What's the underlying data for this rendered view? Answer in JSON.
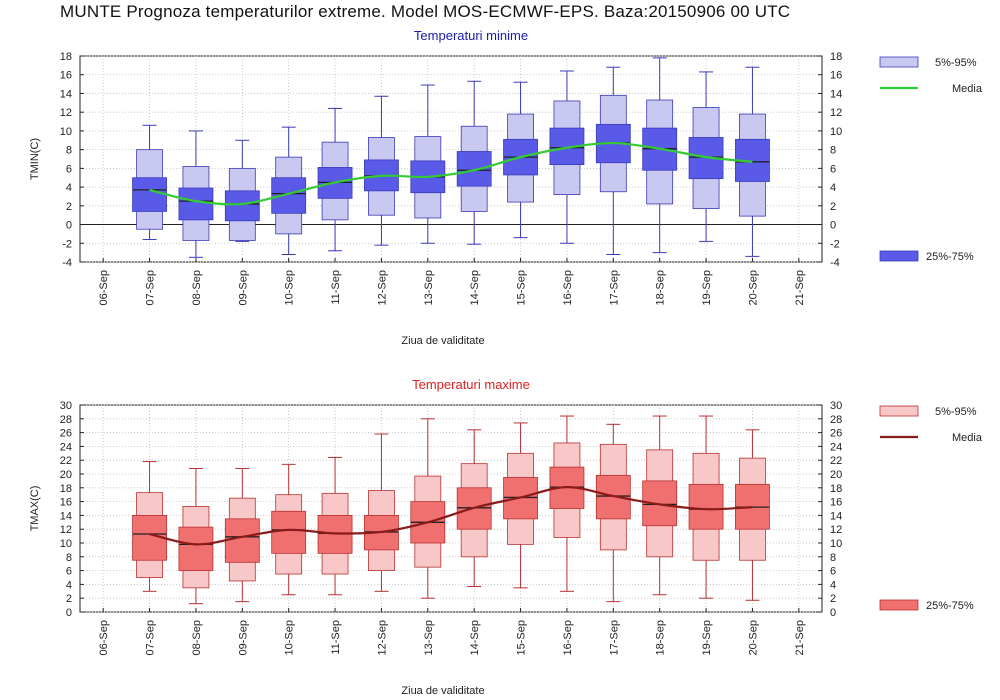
{
  "title": "MUNTE  Prognoza temperaturilor extreme.  Model MOS-ECMWF-EPS. Baza:20150906 00 UTC",
  "legend": {
    "range_outer": "5%-95%",
    "median": "Media",
    "range_inner": "25%-75%"
  },
  "colors": {
    "tmin_box": "#5a5ae8",
    "tmin_outer": "#c8c8f0",
    "tmin_whisker": "#3a3ab8",
    "tmin_median": "#33cc33",
    "tmax_box": "#f07070",
    "tmax_outer": "#f8c8c8",
    "tmax_whisker": "#b83030",
    "tmax_median": "#8b1a1a",
    "tmin_title": "#1a1ab0",
    "tmax_title": "#e02020"
  },
  "chart_data": [
    {
      "type": "boxplot",
      "title": "Temperaturi minime",
      "xlabel": "Ziua de validitate",
      "ylabel": "TMIN(C)",
      "ylim": [
        -4,
        18
      ],
      "yticks": [
        -4,
        -2,
        0,
        2,
        4,
        6,
        8,
        10,
        12,
        14,
        16,
        18
      ],
      "xticks": [
        "06-Sep",
        "07-Sep",
        "08-Sep",
        "09-Sep",
        "10-Sep",
        "11-Sep",
        "12-Sep",
        "13-Sep",
        "14-Sep",
        "15-Sep",
        "16-Sep",
        "17-Sep",
        "18-Sep",
        "19-Sep",
        "20-Sep",
        "21-Sep"
      ],
      "categories": [
        "07-Sep",
        "08-Sep",
        "09-Sep",
        "10-Sep",
        "11-Sep",
        "12-Sep",
        "13-Sep",
        "14-Sep",
        "15-Sep",
        "16-Sep",
        "17-Sep",
        "18-Sep",
        "19-Sep",
        "20-Sep"
      ],
      "min": [
        -1.6,
        -3.5,
        -1.8,
        -3.2,
        -2.8,
        -2.2,
        -2.0,
        -2.1,
        -1.4,
        -2.0,
        -3.2,
        -3.0,
        -1.8,
        -3.4
      ],
      "p5": [
        -0.5,
        -1.7,
        -1.7,
        -1.0,
        0.5,
        1.0,
        0.7,
        1.4,
        2.4,
        3.2,
        3.5,
        2.2,
        1.7,
        0.9
      ],
      "p25": [
        1.4,
        0.5,
        0.4,
        1.2,
        2.8,
        3.6,
        3.4,
        4.1,
        5.3,
        6.4,
        6.6,
        5.8,
        4.9,
        4.6
      ],
      "p75": [
        5.0,
        3.9,
        3.6,
        5.0,
        6.1,
        6.9,
        6.8,
        7.8,
        9.1,
        10.3,
        10.7,
        10.3,
        9.3,
        9.1
      ],
      "p95": [
        8.0,
        6.2,
        6.0,
        7.2,
        8.8,
        9.3,
        9.4,
        10.5,
        11.8,
        13.2,
        13.8,
        13.3,
        12.5,
        11.8
      ],
      "max": [
        10.6,
        10.0,
        9.0,
        10.4,
        12.4,
        13.7,
        14.9,
        15.3,
        15.2,
        16.4,
        16.8,
        17.8,
        16.3,
        16.8
      ],
      "median": [
        3.7,
        2.5,
        2.2,
        3.3,
        4.5,
        5.2,
        5.1,
        5.8,
        7.2,
        8.2,
        8.7,
        8.1,
        7.2,
        6.7
      ],
      "legend": [
        "5%-95%",
        "Media",
        "25%-75%"
      ]
    },
    {
      "type": "boxplot",
      "title": "Temperaturi maxime",
      "xlabel": "Ziua de validitate",
      "ylabel": "TMAX(C)",
      "ylim": [
        0,
        30
      ],
      "yticks": [
        0,
        2,
        4,
        6,
        8,
        10,
        12,
        14,
        16,
        18,
        20,
        22,
        24,
        26,
        28,
        30
      ],
      "xticks": [
        "06-Sep",
        "07-Sep",
        "08-Sep",
        "09-Sep",
        "10-Sep",
        "11-Sep",
        "12-Sep",
        "13-Sep",
        "14-Sep",
        "15-Sep",
        "16-Sep",
        "17-Sep",
        "18-Sep",
        "19-Sep",
        "20-Sep",
        "21-Sep"
      ],
      "categories": [
        "07-Sep",
        "08-Sep",
        "09-Sep",
        "10-Sep",
        "11-Sep",
        "12-Sep",
        "13-Sep",
        "14-Sep",
        "15-Sep",
        "16-Sep",
        "17-Sep",
        "18-Sep",
        "19-Sep",
        "20-Sep"
      ],
      "min": [
        3.0,
        1.2,
        1.5,
        2.5,
        2.5,
        3.0,
        2.0,
        3.7,
        3.5,
        3.0,
        1.5,
        2.5,
        2.0,
        1.7
      ],
      "p5": [
        5.0,
        3.5,
        4.5,
        5.5,
        5.5,
        6.0,
        6.5,
        8.0,
        9.8,
        10.8,
        9.0,
        8.0,
        7.5,
        7.5
      ],
      "p25": [
        7.5,
        6.0,
        7.2,
        8.5,
        8.5,
        9.0,
        10.0,
        12.0,
        13.5,
        15.0,
        13.5,
        12.5,
        12.0,
        12.0
      ],
      "p75": [
        14.0,
        12.3,
        13.5,
        14.6,
        14.0,
        14.0,
        16.0,
        18.0,
        19.5,
        21.0,
        19.8,
        19.0,
        18.5,
        18.5
      ],
      "p95": [
        17.3,
        15.3,
        16.5,
        17.0,
        17.2,
        17.6,
        19.7,
        21.5,
        23.0,
        24.5,
        24.3,
        23.5,
        23.0,
        22.3
      ],
      "max": [
        21.8,
        20.8,
        20.8,
        21.4,
        22.4,
        25.8,
        28.0,
        26.4,
        27.4,
        28.4,
        27.2,
        28.4,
        28.4,
        26.4
      ],
      "median": [
        11.3,
        9.8,
        10.9,
        11.9,
        11.4,
        11.6,
        13.0,
        15.1,
        16.6,
        18.1,
        16.8,
        15.6,
        14.9,
        15.2
      ],
      "legend": [
        "5%-95%",
        "Media",
        "25%-75%"
      ]
    }
  ]
}
